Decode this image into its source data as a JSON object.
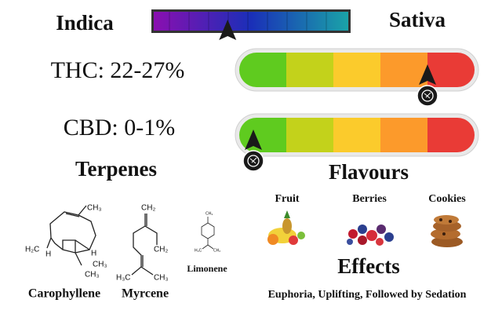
{
  "header": {
    "left": "Indica",
    "right": "Sativa",
    "marker": 0.38
  },
  "potency": [
    {
      "label": "THC: 22-27%",
      "marker": 0.8
    },
    {
      "label": "CBD: 0-1%",
      "marker": 0.06
    }
  ],
  "scale_colors": [
    "#5fcb1f",
    "#c3d21b",
    "#fbcb2c",
    "#fc9a2b",
    "#e93b36"
  ],
  "terpenes": {
    "title": "Terpenes",
    "items": [
      {
        "name": "Carophyllene",
        "labels": [
          "CH₃",
          "H₂C",
          "H",
          "H",
          "CH₃",
          "CH₃"
        ]
      },
      {
        "name": "Myrcene",
        "labels": [
          "CH₂",
          "CH₂",
          "H₃C",
          "CH₃"
        ]
      },
      {
        "name": "Limonene",
        "labels": [
          "CH₃",
          "H₃C",
          "CH₂"
        ]
      }
    ]
  },
  "flavours": {
    "title": "Flavours",
    "items": [
      "Fruit",
      "Berries",
      "Cookies"
    ]
  },
  "effects": {
    "title": "Effects",
    "text": "Euphoria, Uplifting, Followed by Sedation"
  }
}
